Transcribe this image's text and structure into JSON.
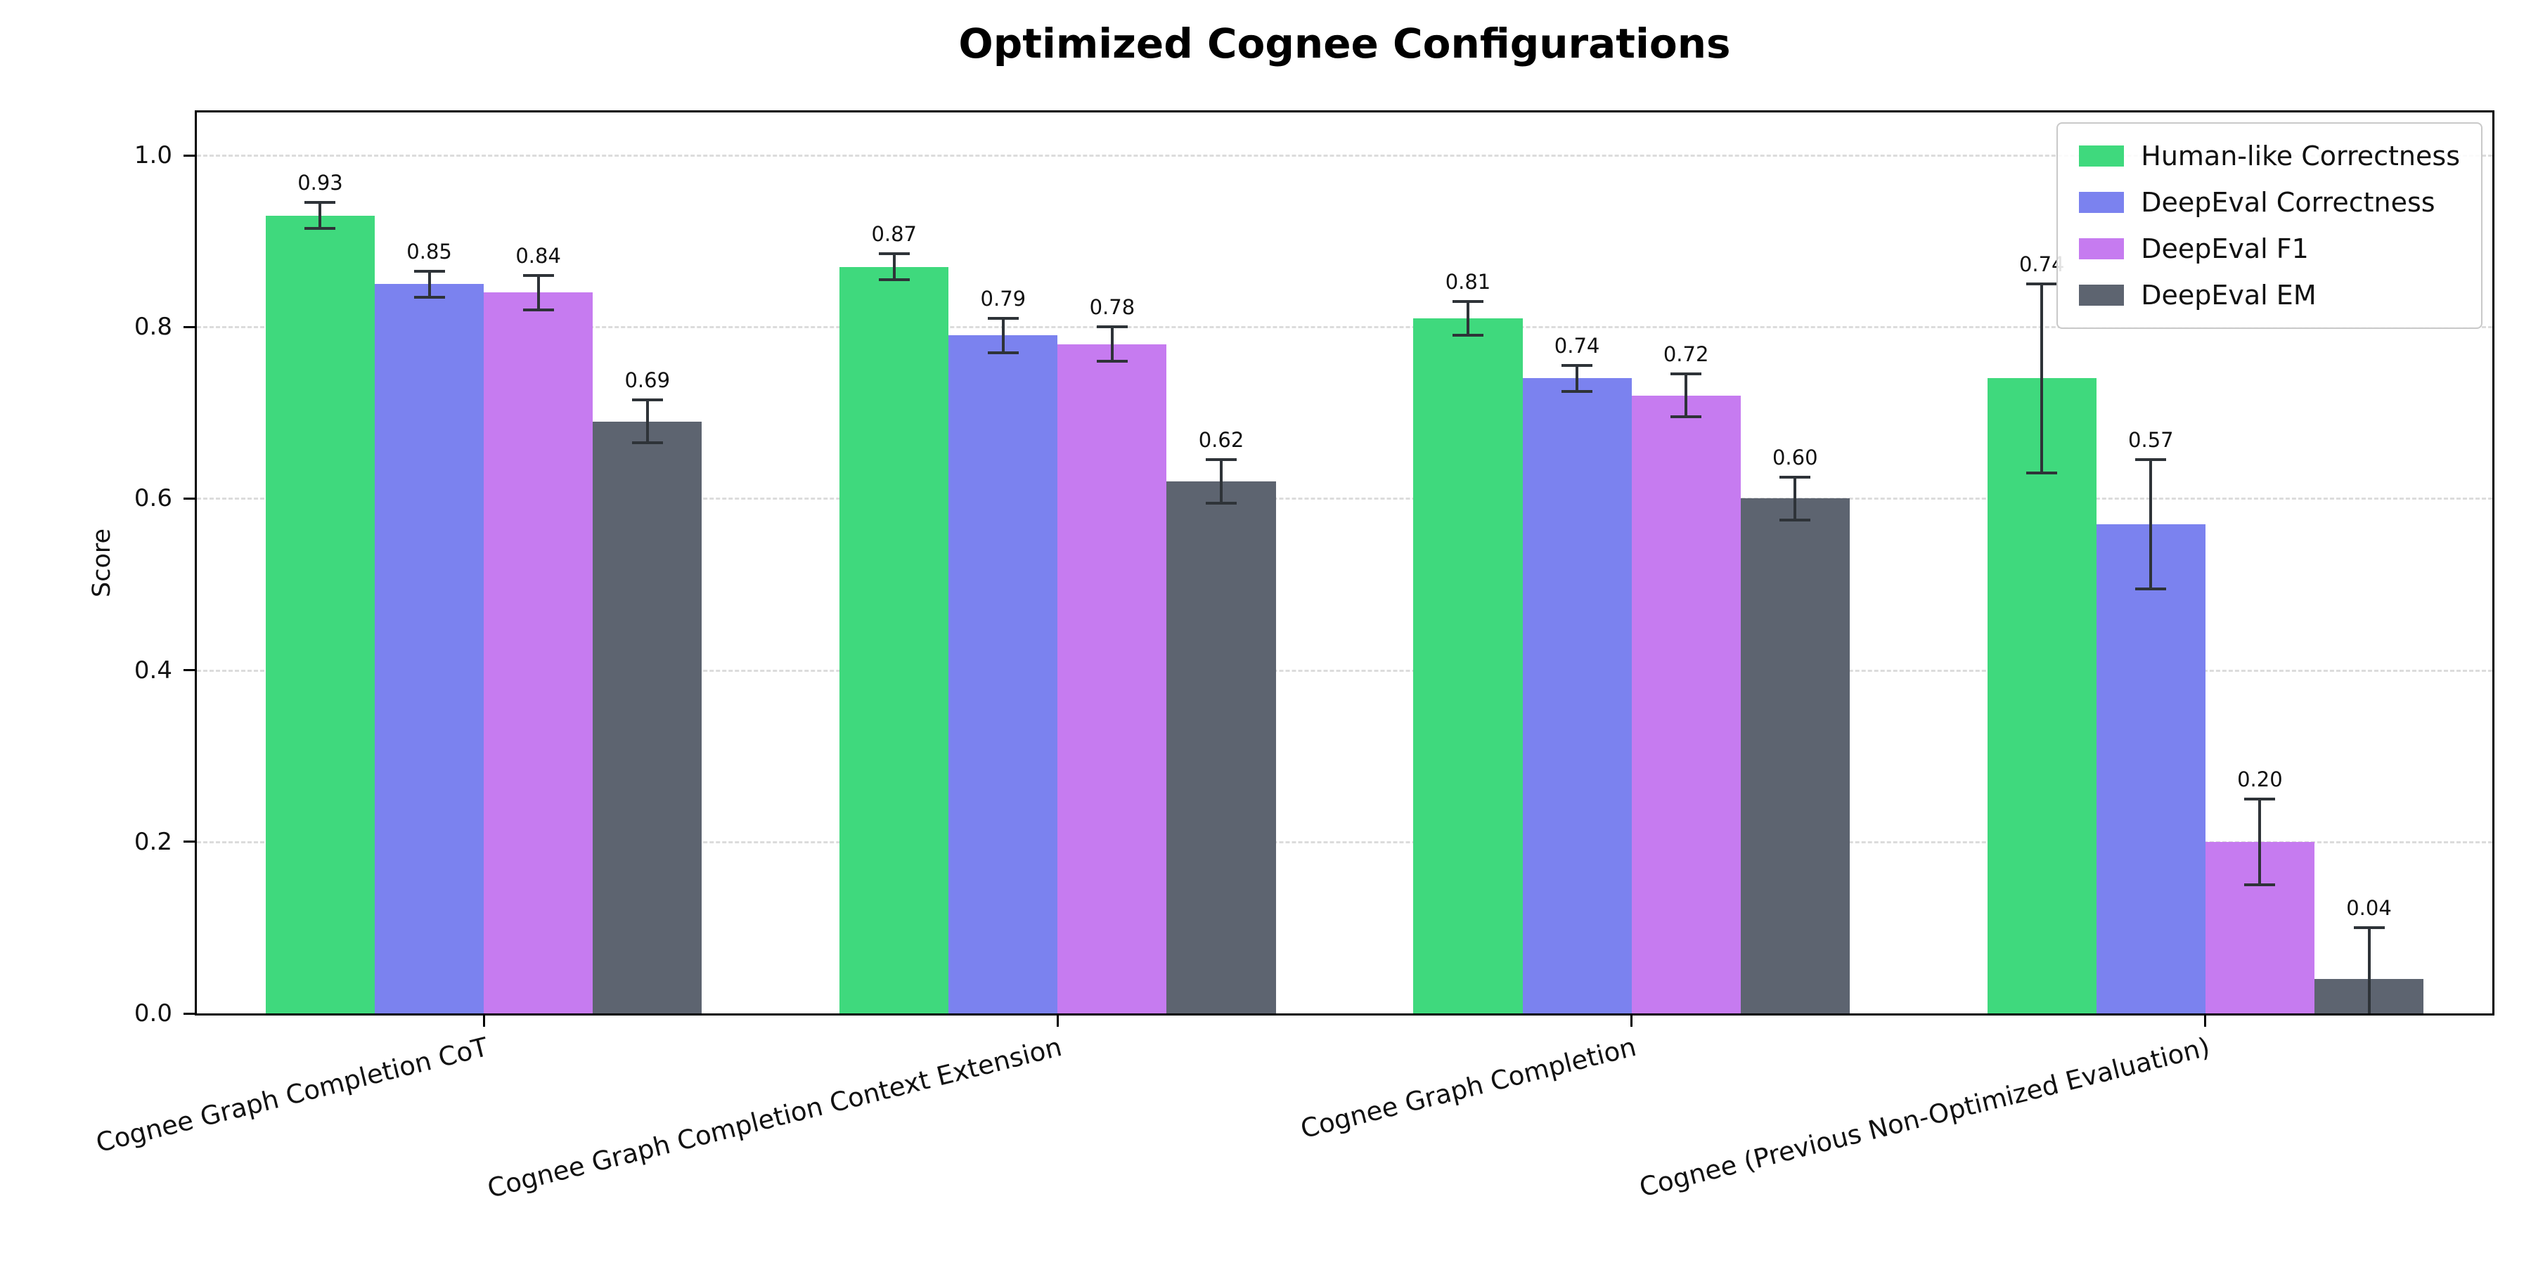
{
  "chart_data": {
    "type": "bar",
    "title": "Optimized Cognee Configurations",
    "ylabel": "Score",
    "ylim": [
      0,
      1.05
    ],
    "yticks": [
      0.0,
      0.2,
      0.4,
      0.6,
      0.8,
      1.0
    ],
    "grid": "horizontal dashed",
    "legend_position": "upper right",
    "bar_value_labels": true,
    "error_bars": true,
    "categories": [
      "Cognee Graph Completion CoT",
      "Cognee Graph Completion Context Extension",
      "Cognee Graph Completion",
      "Cognee (Previous Non-Optimized Evaluation)"
    ],
    "series": [
      {
        "name": "Human-like Correctness",
        "color": "#3fd97d",
        "values": [
          0.93,
          0.87,
          0.81,
          0.74
        ],
        "errors": [
          0.015,
          0.015,
          0.02,
          0.11
        ]
      },
      {
        "name": "DeepEval Correctness",
        "color": "#7b82ef",
        "values": [
          0.85,
          0.79,
          0.74,
          0.57
        ],
        "errors": [
          0.015,
          0.02,
          0.015,
          0.075
        ]
      },
      {
        "name": "DeepEval F1",
        "color": "#c67bf0",
        "values": [
          0.84,
          0.78,
          0.72,
          0.2
        ],
        "errors": [
          0.02,
          0.02,
          0.025,
          0.05
        ]
      },
      {
        "name": "DeepEval EM",
        "color": "#5d6470",
        "values": [
          0.69,
          0.62,
          0.6,
          0.04
        ],
        "errors": [
          0.025,
          0.025,
          0.025,
          0.06
        ]
      }
    ],
    "colors": {
      "error_bar": "#2e3338",
      "gridline": "#dcdcdc",
      "axis": "#000000"
    }
  }
}
